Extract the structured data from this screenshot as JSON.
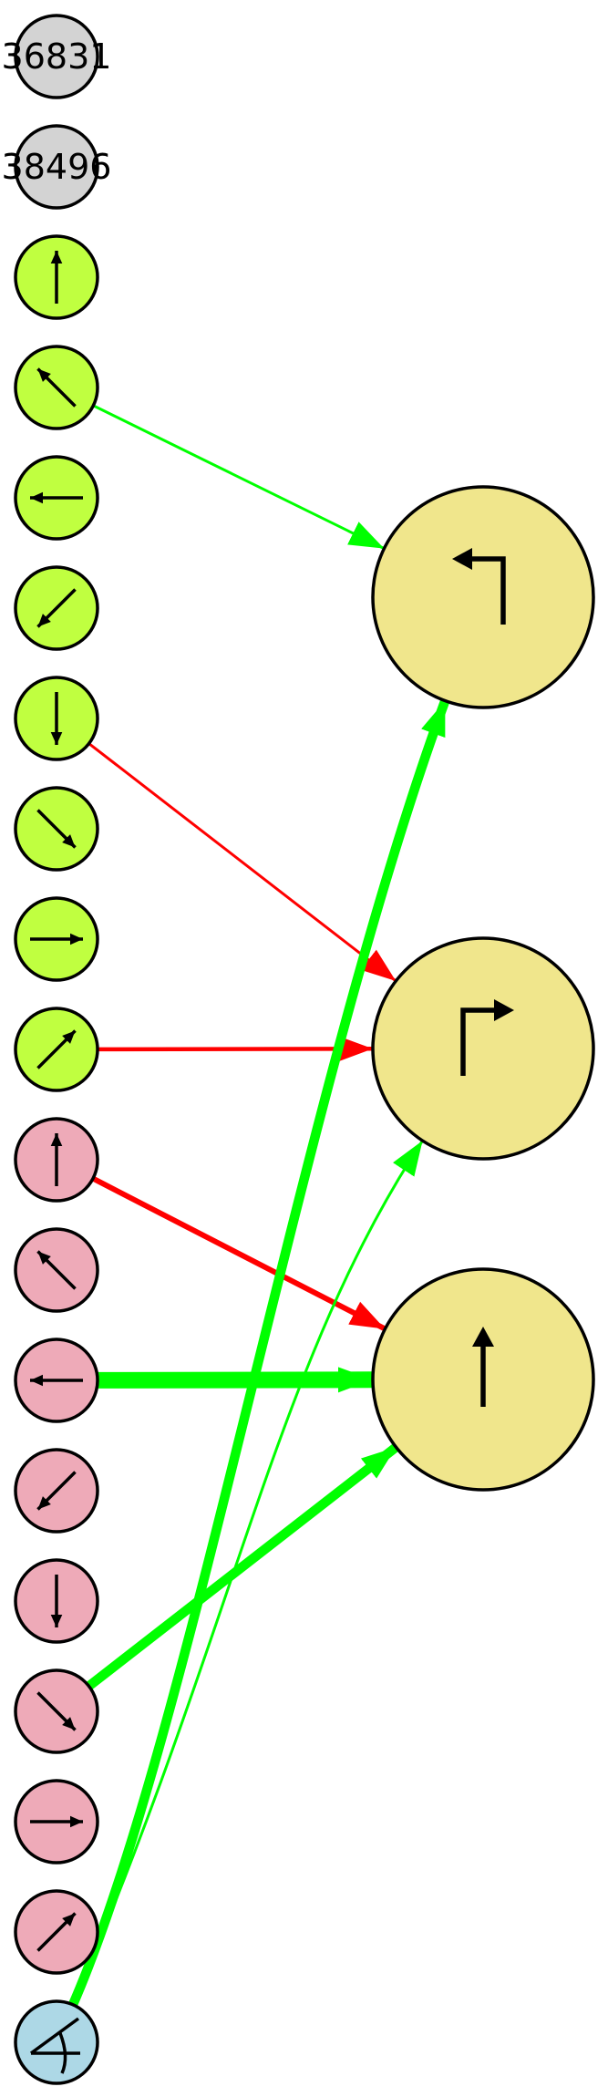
{
  "colors": {
    "gray_node": "#d3d3d3",
    "green_node": "#c0ff40",
    "pink_node": "#eeaab8",
    "blue_node": "#add8e6",
    "target_node": "#f0e68c",
    "edge_green": "#00ff00",
    "edge_red": "#ff0000",
    "stroke": "#000000"
  },
  "inputs": [
    {
      "id": "n0",
      "label": "36831",
      "kind": "text",
      "fill": "gray"
    },
    {
      "id": "n1",
      "label": "38496",
      "kind": "text",
      "fill": "gray"
    },
    {
      "id": "n2",
      "kind": "arrow",
      "direction": "up",
      "fill": "green"
    },
    {
      "id": "n3",
      "kind": "arrow",
      "direction": "up-left",
      "fill": "green"
    },
    {
      "id": "n4",
      "kind": "arrow",
      "direction": "left",
      "fill": "green"
    },
    {
      "id": "n5",
      "kind": "arrow",
      "direction": "down-left",
      "fill": "green"
    },
    {
      "id": "n6",
      "kind": "arrow",
      "direction": "down",
      "fill": "green"
    },
    {
      "id": "n7",
      "kind": "arrow",
      "direction": "down-right",
      "fill": "green"
    },
    {
      "id": "n8",
      "kind": "arrow",
      "direction": "right",
      "fill": "green"
    },
    {
      "id": "n9",
      "kind": "arrow",
      "direction": "up-right",
      "fill": "green"
    },
    {
      "id": "n10",
      "kind": "arrow",
      "direction": "up",
      "fill": "pink"
    },
    {
      "id": "n11",
      "kind": "arrow",
      "direction": "up-left",
      "fill": "pink"
    },
    {
      "id": "n12",
      "kind": "arrow",
      "direction": "left",
      "fill": "pink"
    },
    {
      "id": "n13",
      "kind": "arrow",
      "direction": "down-left",
      "fill": "pink"
    },
    {
      "id": "n14",
      "kind": "arrow",
      "direction": "down",
      "fill": "pink"
    },
    {
      "id": "n15",
      "kind": "arrow",
      "direction": "down-right",
      "fill": "pink"
    },
    {
      "id": "n16",
      "kind": "arrow",
      "direction": "right",
      "fill": "pink"
    },
    {
      "id": "n17",
      "kind": "arrow",
      "direction": "up-right",
      "fill": "pink"
    },
    {
      "id": "n18",
      "kind": "angle",
      "fill": "blue"
    }
  ],
  "outputs": [
    {
      "id": "o0",
      "kind": "turn-left",
      "fill": "target"
    },
    {
      "id": "o1",
      "kind": "turn-right",
      "fill": "target"
    },
    {
      "id": "o2",
      "kind": "straight",
      "fill": "target"
    }
  ],
  "edges": [
    {
      "from": "n3",
      "to": "o0",
      "color": "green",
      "weight": 1
    },
    {
      "from": "n6",
      "to": "o1",
      "color": "red",
      "weight": 1
    },
    {
      "from": "n9",
      "to": "o1",
      "color": "red",
      "weight": 1.5
    },
    {
      "from": "n10",
      "to": "o2",
      "color": "red",
      "weight": 2
    },
    {
      "from": "n12",
      "to": "o2",
      "color": "green",
      "weight": 6
    },
    {
      "from": "n15",
      "to": "o2",
      "color": "green",
      "weight": 3.5
    },
    {
      "from": "n18",
      "to": "o0",
      "color": "green",
      "weight": 3.5
    },
    {
      "from": "n18",
      "to": "o1",
      "color": "green",
      "weight": 1
    }
  ]
}
